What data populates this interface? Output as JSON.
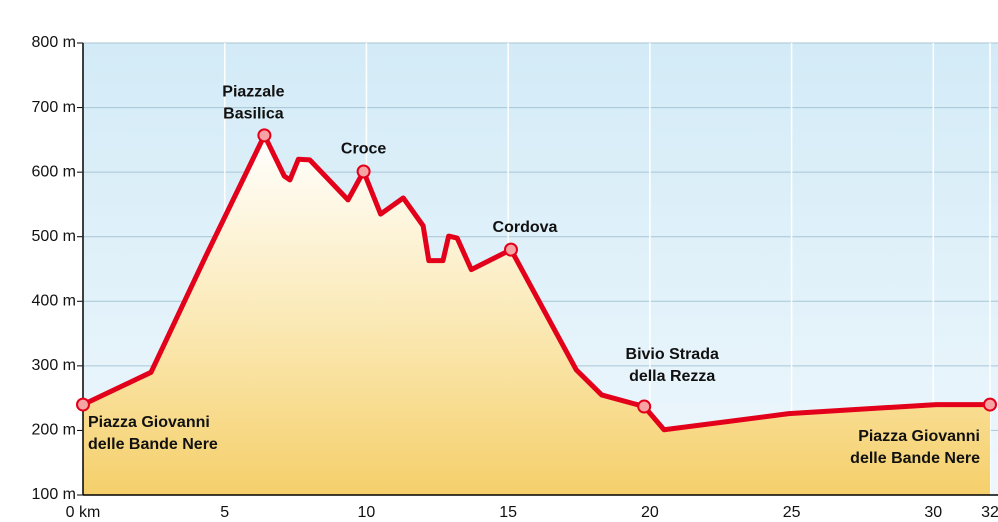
{
  "chart_data": {
    "type": "area",
    "series": [
      {
        "color": "#e3001b",
        "x": [
          0,
          2.4,
          4.3,
          6.4,
          7.1,
          7.3,
          7.6,
          8.0,
          9.35,
          9.9,
          10.5,
          11.3,
          12.0,
          12.2,
          12.7,
          12.9,
          13.2,
          13.7,
          15.1,
          17.4,
          18.3,
          19.8,
          20.5,
          24.9,
          30.1,
          32
        ],
        "values": [
          240,
          290,
          467,
          657,
          594,
          588,
          620,
          619,
          557,
          601,
          535,
          560,
          517,
          463,
          463,
          501,
          498,
          449,
          480,
          294,
          255,
          237,
          201,
          226,
          240,
          240
        ]
      }
    ],
    "xlim": [
      0,
      32
    ],
    "xticks": [
      {
        "value": 0,
        "label": "0 km"
      },
      5,
      10,
      15,
      20,
      25,
      30,
      32
    ],
    "ylim": [
      100,
      800
    ],
    "yticks": [
      {
        "value": 100,
        "label": "100 m"
      },
      {
        "value": 200,
        "label": "200 m"
      },
      {
        "value": 300,
        "label": "300 m"
      },
      {
        "value": 400,
        "label": "400 m"
      },
      {
        "value": 500,
        "label": "500 m"
      },
      {
        "value": 600,
        "label": "600 m"
      },
      {
        "value": 700,
        "label": "700 m"
      },
      {
        "value": 800,
        "label": "800 m"
      }
    ],
    "grid": true,
    "annotations": [
      {
        "text": [
          "Piazza Giovanni",
          "delle Bande Nere"
        ],
        "x": 0,
        "y": 240
      },
      {
        "text": [
          "Piazzale",
          "Basilica"
        ],
        "x": 6.4,
        "y": 657
      },
      {
        "text": [
          "Croce"
        ],
        "x": 9.9,
        "y": 601
      },
      {
        "text": [
          "Cordova"
        ],
        "x": 15.1,
        "y": 480
      },
      {
        "text": [
          "Bivio Strada",
          "della Rezza"
        ],
        "x": 19.8,
        "y": 237
      },
      {
        "text": [
          "Piazza Giovanni",
          "delle Bande Nere"
        ],
        "x": 32,
        "y": 240
      }
    ]
  }
}
